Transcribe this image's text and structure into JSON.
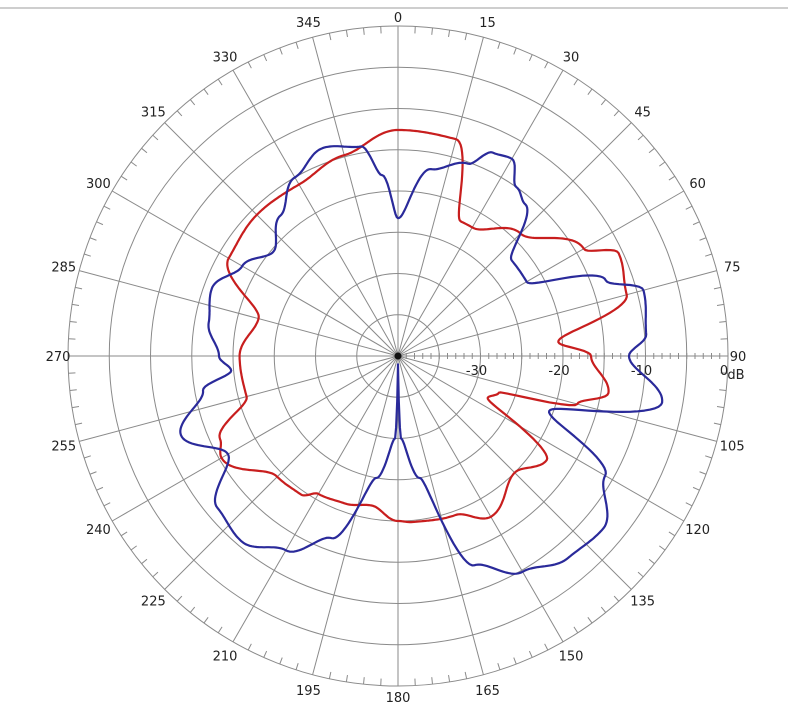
{
  "chart_data": {
    "type": "polar-line",
    "angle_direction": "clockwise",
    "zero_angle": "top",
    "angle_tick_labels": [
      "0",
      "15",
      "30",
      "45",
      "60",
      "75",
      "90",
      "105",
      "120",
      "135",
      "150",
      "165",
      "180",
      "195",
      "210",
      "225",
      "240",
      "255",
      "270",
      "285",
      "300",
      "315",
      "330",
      "345"
    ],
    "radial_tick_labels": [
      "-30",
      "-20",
      "-10",
      "0"
    ],
    "radial_unit": "dB",
    "radial_range": [
      -40,
      0
    ],
    "grid": true,
    "series": [
      {
        "color": "#c81e1e",
        "points": [
          [
            0,
            -12.6
          ],
          [
            15,
            -12.8
          ],
          [
            25,
            -22
          ],
          [
            30,
            -22
          ],
          [
            45,
            -19
          ],
          [
            60,
            -14
          ],
          [
            65,
            -10.5
          ],
          [
            75,
            -11.3
          ],
          [
            85,
            -20.5
          ],
          [
            90,
            -16.6
          ],
          [
            100,
            -14.1
          ],
          [
            105,
            -17.5
          ],
          [
            110,
            -27
          ],
          [
            115,
            -28
          ],
          [
            125,
            -18
          ],
          [
            135,
            -20
          ],
          [
            150,
            -17.5
          ],
          [
            160,
            -19.5
          ],
          [
            175,
            -19.8
          ],
          [
            180,
            -20
          ],
          [
            190,
            -21.6
          ],
          [
            200,
            -21
          ],
          [
            210,
            -20.7
          ],
          [
            215,
            -19.5
          ],
          [
            225,
            -19.3
          ],
          [
            240,
            -15.3
          ],
          [
            245,
            -16.2
          ],
          [
            255,
            -21
          ],
          [
            270,
            -20.8
          ],
          [
            285,
            -22.5
          ],
          [
            300,
            -16.3
          ],
          [
            315,
            -15.8
          ],
          [
            330,
            -16
          ],
          [
            345,
            -14.8
          ],
          [
            360,
            -12.6
          ]
        ]
      },
      {
        "color": "#2a2a9a",
        "points": [
          [
            0,
            -23.3
          ],
          [
            10,
            -17
          ],
          [
            20,
            -15.2
          ],
          [
            25,
            -12.8
          ],
          [
            30,
            -12.4
          ],
          [
            35,
            -15
          ],
          [
            40,
            -16
          ],
          [
            50,
            -22
          ],
          [
            60,
            -22
          ],
          [
            70,
            -13.2
          ],
          [
            75,
            -9.2
          ],
          [
            85,
            -9.8
          ],
          [
            90,
            -12
          ],
          [
            100,
            -7.5
          ],
          [
            110,
            -20.5
          ],
          [
            120,
            -11
          ],
          [
            130,
            -7.5
          ],
          [
            140,
            -8
          ],
          [
            150,
            -9.8
          ],
          [
            160,
            -13
          ],
          [
            170,
            -25
          ],
          [
            178,
            -30
          ],
          [
            180,
            -39
          ],
          [
            182,
            -30
          ],
          [
            190,
            -25
          ],
          [
            200,
            -16.5
          ],
          [
            210,
            -12.8
          ],
          [
            220,
            -10.6
          ],
          [
            230,
            -11.4
          ],
          [
            240,
            -16.2
          ],
          [
            250,
            -12
          ],
          [
            260,
            -16
          ],
          [
            265,
            -19.7
          ],
          [
            270,
            -18.3
          ],
          [
            280,
            -16.7
          ],
          [
            290,
            -16
          ],
          [
            300,
            -18.2
          ],
          [
            310,
            -20.3
          ],
          [
            320,
            -17.8
          ],
          [
            330,
            -15
          ],
          [
            340,
            -13.2
          ],
          [
            350,
            -14.2
          ],
          [
            355,
            -18
          ],
          [
            360,
            -23.3
          ]
        ]
      }
    ]
  }
}
